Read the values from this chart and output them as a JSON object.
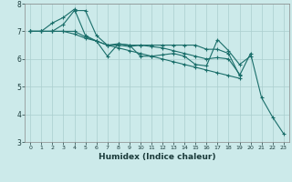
{
  "xlabel": "Humidex (Indice chaleur)",
  "ylabel": "",
  "background_color": "#cceaea",
  "grid_color": "#aacece",
  "line_color": "#1a6e6a",
  "xlim": [
    -0.5,
    23.5
  ],
  "ylim": [
    3,
    8
  ],
  "yticks": [
    3,
    4,
    5,
    6,
    7,
    8
  ],
  "xticks": [
    0,
    1,
    2,
    3,
    4,
    5,
    6,
    7,
    8,
    9,
    10,
    11,
    12,
    13,
    14,
    15,
    16,
    17,
    18,
    19,
    20,
    21,
    22,
    23
  ],
  "series": [
    [
      7.0,
      7.0,
      7.0,
      7.25,
      7.75,
      7.75,
      6.85,
      6.5,
      6.55,
      6.5,
      6.5,
      6.5,
      6.5,
      6.5,
      6.5,
      6.5,
      6.35,
      6.35,
      6.2,
      5.4,
      6.2,
      4.6,
      3.9,
      3.3
    ],
    [
      7.0,
      7.0,
      7.3,
      7.5,
      7.8,
      6.85,
      6.65,
      6.1,
      6.55,
      6.5,
      6.1,
      6.1,
      6.15,
      6.2,
      6.1,
      5.8,
      5.75,
      6.7,
      6.3,
      5.8,
      6.1,
      null,
      null,
      null
    ],
    [
      7.0,
      7.0,
      7.0,
      7.0,
      6.9,
      6.75,
      6.65,
      6.5,
      6.5,
      6.45,
      6.5,
      6.45,
      6.4,
      6.3,
      6.2,
      6.1,
      6.0,
      6.05,
      6.0,
      5.45,
      null,
      null,
      null,
      null
    ],
    [
      7.0,
      7.0,
      7.0,
      7.0,
      7.0,
      6.8,
      6.65,
      6.5,
      6.4,
      6.3,
      6.2,
      6.1,
      6.0,
      5.9,
      5.8,
      5.7,
      5.6,
      5.5,
      5.4,
      5.3,
      null,
      null,
      null,
      null
    ]
  ],
  "marker": "+",
  "markersize": 3,
  "linewidth": 0.8,
  "tick_fontsize": 5.5,
  "xlabel_fontsize": 6.5
}
